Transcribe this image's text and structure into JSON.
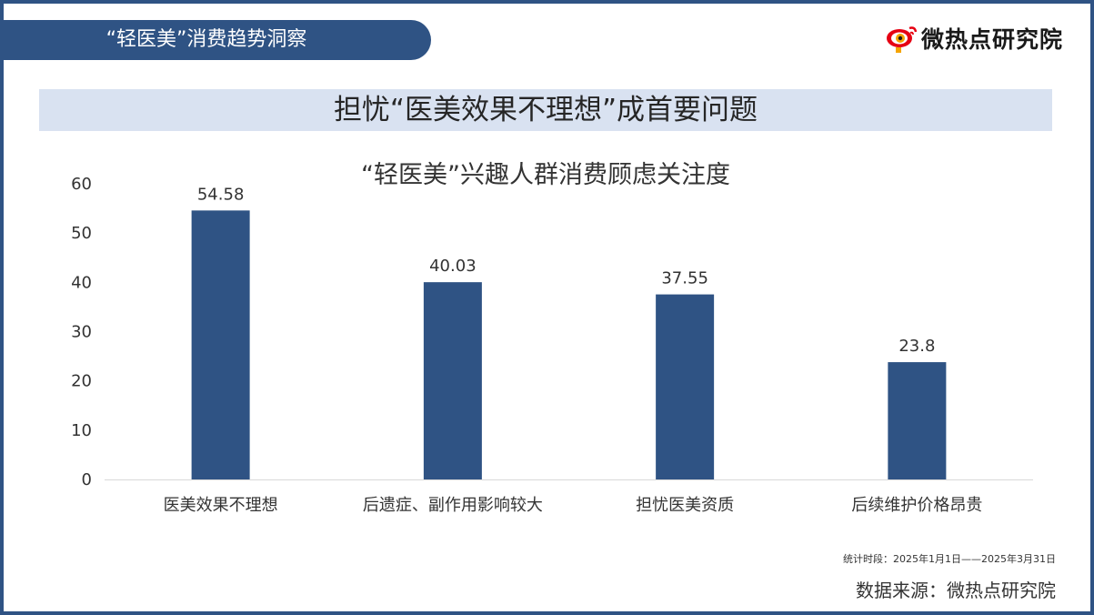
{
  "header": {
    "title": "“轻医美”消费趋势洞察"
  },
  "logo": {
    "text": "微热点研究院",
    "icon": "weibo-eye-icon",
    "colors": {
      "eye": "#e60012",
      "pupil": "#f5a400"
    }
  },
  "banner": {
    "title": "担忧“医美效果不理想”成首要问题"
  },
  "chart_data": {
    "type": "bar",
    "title": "“轻医美”兴趣人群消费顾虑关注度",
    "categories": [
      "医美效果不理想",
      "后遗症、副作用影响较大",
      "担忧医美资质",
      "后续维护价格昂贵"
    ],
    "values": [
      54.58,
      40.03,
      37.55,
      23.8
    ],
    "value_labels": [
      "54.58",
      "40.03",
      "37.55",
      "23.8"
    ],
    "yticks": [
      0,
      10,
      20,
      30,
      40,
      50,
      60
    ],
    "ylim": [
      0,
      60
    ],
    "xlabel": "",
    "ylabel": "",
    "grid": false,
    "bar_color": "#2f5384"
  },
  "footer": {
    "period": "统计时段：2025年1月1日——2025年3月31日",
    "source": "数据来源：微热点研究院"
  },
  "colors": {
    "accent": "#2f5384",
    "banner_bg": "#d9e2f1"
  }
}
